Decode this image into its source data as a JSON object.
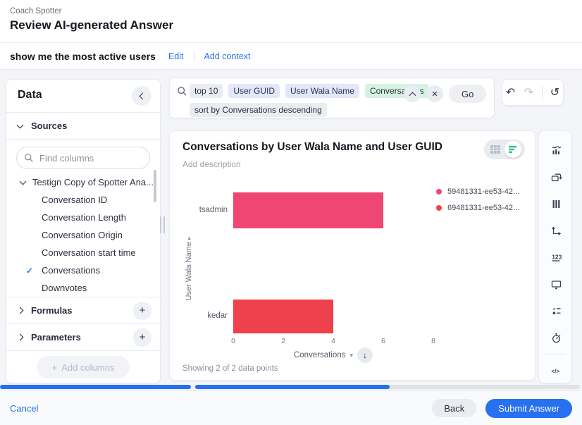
{
  "header": {
    "app_name": "Coach Spotter",
    "title": "Review AI-generated Answer"
  },
  "query_bar": {
    "query": "show me the most active users",
    "edit": "Edit",
    "add_context": "Add context"
  },
  "data_panel": {
    "title": "Data",
    "sources_label": "Sources",
    "find_placeholder": "Find columns",
    "source_name": "Testign Copy of Spotter Ana...",
    "columns": [
      {
        "label": "Conversation ID",
        "selected": false
      },
      {
        "label": "Conversation Length",
        "selected": false
      },
      {
        "label": "Conversation Origin",
        "selected": false
      },
      {
        "label": "Conversation start time",
        "selected": false
      },
      {
        "label": "Conversations",
        "selected": true
      },
      {
        "label": "Downvotes",
        "selected": false
      }
    ],
    "formulas_label": "Formulas",
    "parameters_label": "Parameters",
    "add_columns_label": "Add columns"
  },
  "search_bar": {
    "tokens": [
      {
        "text": "top 10",
        "type": "keyword",
        "row": 1
      },
      {
        "text": "User GUID",
        "type": "attribute",
        "row": 1
      },
      {
        "text": "User Wala Name",
        "type": "attribute",
        "row": 1
      },
      {
        "text": "Conversations",
        "type": "measure",
        "row": 1
      },
      {
        "text": "sort by Conversations descending",
        "type": "keyword",
        "row": 2
      }
    ],
    "go_label": "Go"
  },
  "history_controls": {
    "icons": [
      {
        "name": "undo-icon",
        "glyph": "↶",
        "enabled": true
      },
      {
        "name": "redo-icon",
        "glyph": "↷",
        "enabled": false
      },
      {
        "name": "reset-icon",
        "glyph": "↺",
        "enabled": true
      }
    ]
  },
  "answer": {
    "title": "Conversations by User Wala Name and User GUID",
    "description_placeholder": "Add description",
    "footnote": "Showing 2 of 2 data points"
  },
  "view_toggle": {
    "views": [
      "table",
      "chart"
    ],
    "active": "chart"
  },
  "chart_data": {
    "type": "bar",
    "orientation": "horizontal",
    "title": "Conversations by User Wala Name and User GUID",
    "xlabel": "Conversations",
    "ylabel": "User Wala Name",
    "xlim": [
      0,
      8
    ],
    "xticks": [
      0,
      2,
      4,
      6,
      8
    ],
    "legend_position": "top-right",
    "points": [
      {
        "category": "tsadmin",
        "legend": "59481331-ee53-42...",
        "value": 6,
        "color": "#f04673"
      },
      {
        "category": "kedar",
        "legend": "69481331-ee53-42...",
        "value": 4,
        "color": "#ef414d"
      }
    ]
  },
  "chart_toolbar": {
    "icons": [
      "chart-type-icon",
      "rerun-icon",
      "columns-icon",
      "swap-axes-icon",
      "number-format-icon",
      "display-icon",
      "legend-style-icon",
      "timer-icon",
      "code-icon"
    ]
  },
  "footer": {
    "cancel": "Cancel",
    "back": "Back",
    "submit": "Submit Answer"
  },
  "colors": {
    "accent": "#2770ef",
    "bar_pink": "#f04673",
    "bar_red": "#ef414d",
    "token_keyword": "#e9edf2",
    "token_attribute": "#e3e7fc",
    "token_measure": "#d5f2e2",
    "toggle_green": "#1fce7f"
  }
}
